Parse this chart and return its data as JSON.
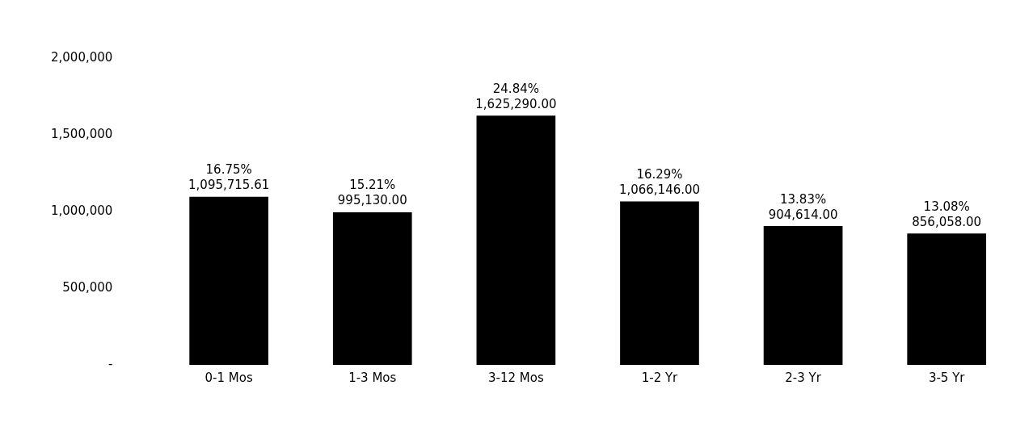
{
  "chart_data": {
    "type": "bar",
    "categories": [
      "0-1 Mos",
      "1-3 Mos",
      "3-12 Mos",
      "1-2 Yr",
      "2-3 Yr",
      "3-5 Yr"
    ],
    "values": [
      1095715.61,
      995130,
      1625290,
      1066146,
      904614,
      856058
    ],
    "value_labels": [
      "16.75%\n1,095,715.61",
      "15.21%\n995,130.00",
      "24.84%\n1,625,290.00",
      "16.29%\n1,066,146.00",
      "13.83%\n904,614.00",
      "13.08%\n856,058.00"
    ],
    "color": "#000000",
    "ylim": [
      0,
      2000000
    ],
    "yticks": [
      {
        "value": 0,
        "label": "-"
      },
      {
        "value": 500000,
        "label": "500,000"
      },
      {
        "value": 1000000,
        "label": "1,000,000"
      },
      {
        "value": 1500000,
        "label": "1,500,000"
      },
      {
        "value": 2000000,
        "label": "2,000,000"
      }
    ],
    "grid": false,
    "legend": false
  }
}
